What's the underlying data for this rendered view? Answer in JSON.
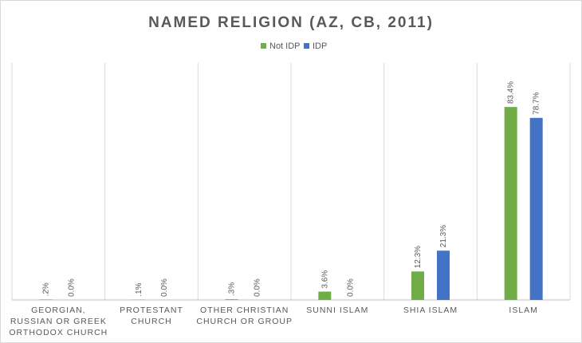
{
  "chart_data": {
    "type": "bar",
    "title": "NAMED RELIGION (AZ, CB, 2011)",
    "categories": [
      [
        "GEORGIAN,",
        "RUSSIAN OR GREEK",
        "ORTHODOX CHURCH"
      ],
      [
        "PROTESTANT",
        "CHURCH"
      ],
      [
        "OTHER CHRISTIAN",
        "CHURCH OR GROUP"
      ],
      [
        "SUNNI ISLAM"
      ],
      [
        "SHIA ISLAM"
      ],
      [
        "ISLAM"
      ]
    ],
    "series": [
      {
        "name": "Not IDP",
        "color": "#70ad47",
        "values": [
          0.2,
          0.1,
          0.3,
          3.6,
          12.3,
          83.4
        ],
        "labels": [
          ".2%",
          ".1%",
          ".3%",
          "3.6%",
          "12.3%",
          "83.4%"
        ]
      },
      {
        "name": "IDP",
        "color": "#4472c4",
        "values": [
          0.0,
          0.0,
          0.0,
          0.0,
          21.3,
          78.7
        ],
        "labels": [
          "0.0%",
          "0.0%",
          "0.0%",
          "0.0%",
          "21.3%",
          "78.7%"
        ]
      }
    ],
    "ylim": [
      0,
      100
    ],
    "grid": "vertical category separators",
    "legend": "top-center"
  }
}
